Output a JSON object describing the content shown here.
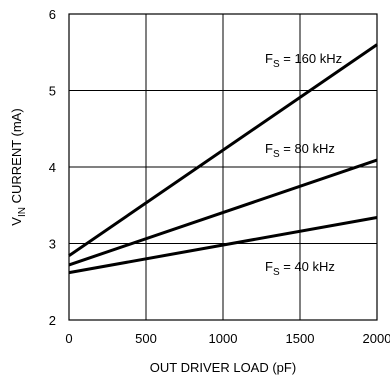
{
  "chart_data": {
    "type": "line",
    "xlabel": "OUT DRIVER LOAD (pF)",
    "ylabel": {
      "pre": "V",
      "sub": "IN",
      "post": " CURRENT (mA)"
    },
    "xlim": [
      0,
      2000
    ],
    "ylim": [
      2,
      6
    ],
    "xticks": [
      "0",
      "500",
      "1000",
      "1500",
      "2000"
    ],
    "yticks": [
      "2",
      "3",
      "4",
      "5",
      "6"
    ],
    "grid": true,
    "series": [
      {
        "name": {
          "pre": "F",
          "sub": "S",
          "post": " = 160 kHz"
        },
        "x": [
          0,
          2000
        ],
        "y": [
          2.84,
          5.6
        ]
      },
      {
        "name": {
          "pre": "F",
          "sub": "S",
          "post": " = 80 kHz"
        },
        "x": [
          0,
          2000
        ],
        "y": [
          2.72,
          4.09
        ]
      },
      {
        "name": {
          "pre": "F",
          "sub": "S",
          "post": " = 40 kHz"
        },
        "x": [
          0,
          2000
        ],
        "y": [
          2.62,
          3.34
        ]
      }
    ]
  }
}
